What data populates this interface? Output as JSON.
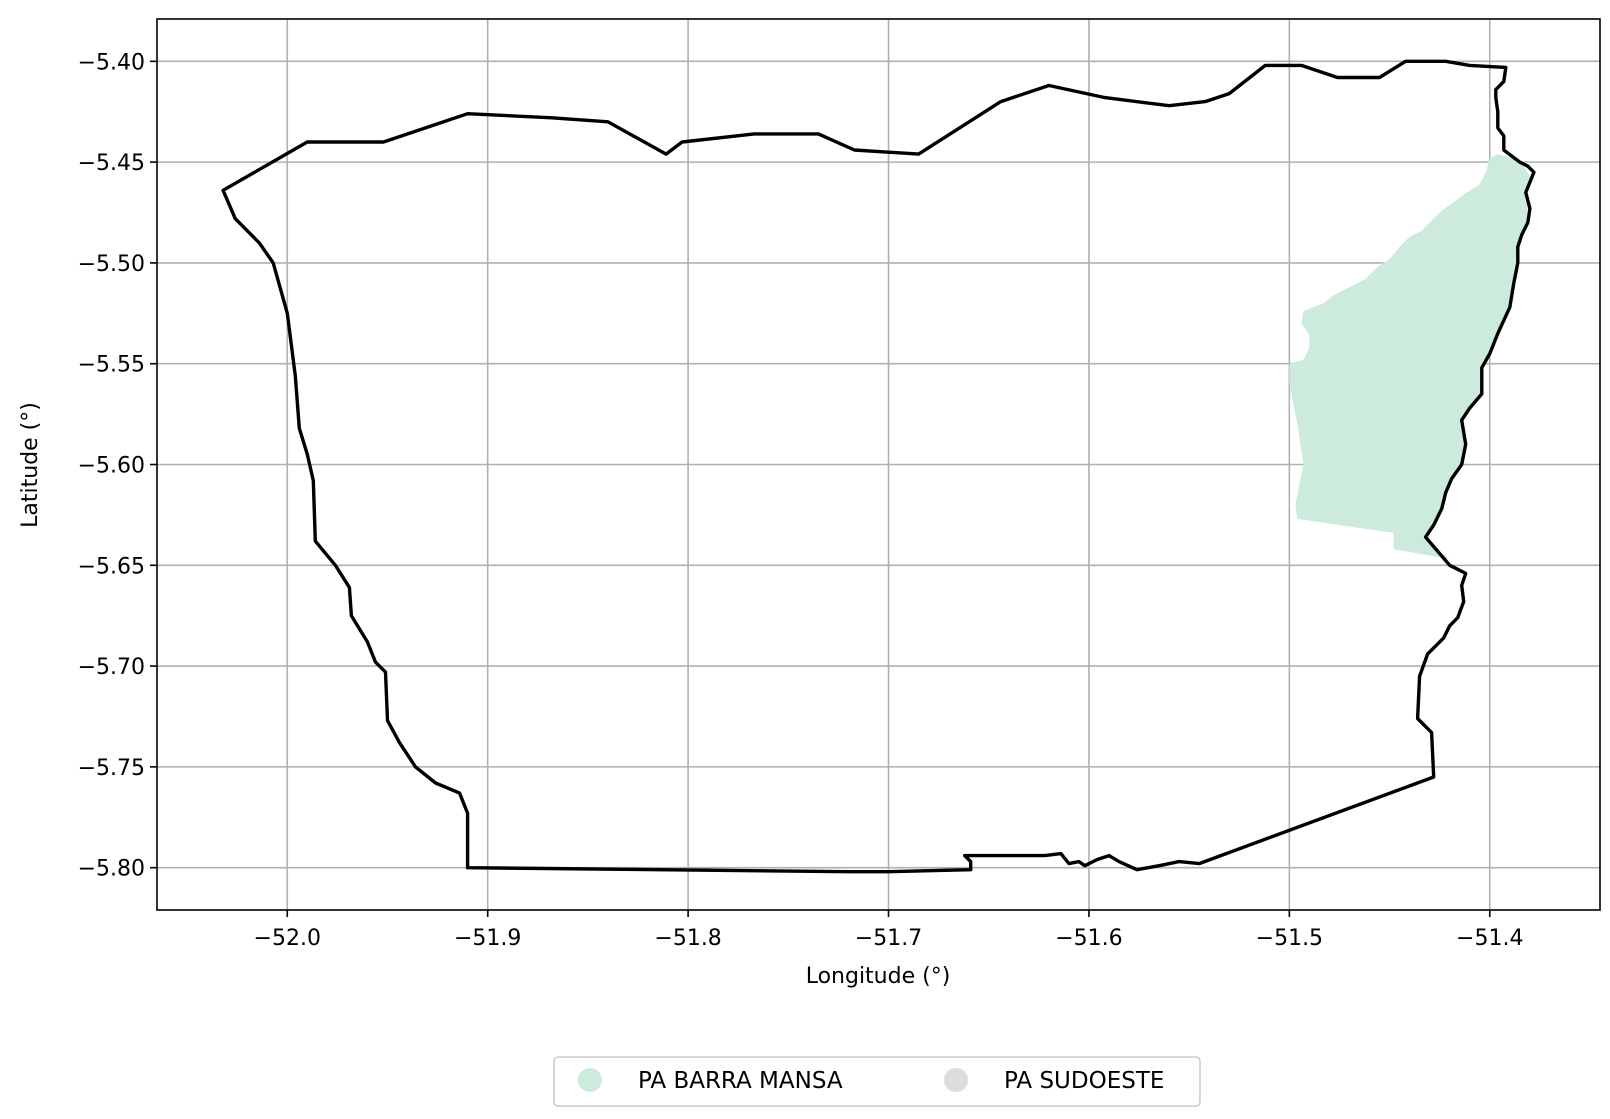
{
  "chart_data": {
    "type": "map",
    "xlabel": "Longitude (°)",
    "ylabel": "Latitude (°)",
    "xlim": [
      -52.065,
      -51.345
    ],
    "ylim": [
      -5.821,
      -5.379
    ],
    "xticks": [
      -52.0,
      -51.9,
      -51.8,
      -51.7,
      -51.6,
      -51.5,
      -51.4
    ],
    "yticks": [
      -5.4,
      -5.45,
      -5.5,
      -5.55,
      -5.6,
      -5.65,
      -5.7,
      -5.75,
      -5.8
    ],
    "xtick_labels": [
      "−52.0",
      "−51.9",
      "−51.8",
      "−51.7",
      "−51.6",
      "−51.5",
      "−51.4"
    ],
    "ytick_labels": [
      "−5.40",
      "−5.45",
      "−5.50",
      "−5.55",
      "−5.60",
      "−5.65",
      "−5.70",
      "−5.75",
      "−5.80"
    ],
    "grid": true,
    "boundary": {
      "color": "#000000",
      "coords": [
        [
          -52.032,
          -5.464
        ],
        [
          -51.99,
          -5.44
        ],
        [
          -51.952,
          -5.44
        ],
        [
          -51.91,
          -5.426
        ],
        [
          -51.868,
          -5.428
        ],
        [
          -51.84,
          -5.43
        ],
        [
          -51.811,
          -5.446
        ],
        [
          -51.803,
          -5.44
        ],
        [
          -51.767,
          -5.436
        ],
        [
          -51.735,
          -5.436
        ],
        [
          -51.717,
          -5.444
        ],
        [
          -51.685,
          -5.446
        ],
        [
          -51.644,
          -5.42
        ],
        [
          -51.62,
          -5.412
        ],
        [
          -51.592,
          -5.418
        ],
        [
          -51.56,
          -5.422
        ],
        [
          -51.542,
          -5.42
        ],
        [
          -51.53,
          -5.416
        ],
        [
          -51.512,
          -5.402
        ],
        [
          -51.494,
          -5.402
        ],
        [
          -51.476,
          -5.408
        ],
        [
          -51.455,
          -5.408
        ],
        [
          -51.442,
          -5.4
        ],
        [
          -51.422,
          -5.4
        ],
        [
          -51.41,
          -5.402
        ],
        [
          -51.392,
          -5.403
        ],
        [
          -51.393,
          -5.41
        ],
        [
          -51.397,
          -5.414
        ],
        [
          -51.397,
          -5.418
        ],
        [
          -51.396,
          -5.425
        ],
        [
          -51.396,
          -5.433
        ],
        [
          -51.393,
          -5.437
        ],
        [
          -51.393,
          -5.444
        ],
        [
          -51.389,
          -5.447
        ],
        [
          -51.385,
          -5.45
        ],
        [
          -51.381,
          -5.452
        ],
        [
          -51.378,
          -5.455
        ],
        [
          -51.382,
          -5.465
        ],
        [
          -51.38,
          -5.473
        ],
        [
          -51.381,
          -5.48
        ],
        [
          -51.384,
          -5.486
        ],
        [
          -51.386,
          -5.492
        ],
        [
          -51.386,
          -5.5
        ],
        [
          -51.388,
          -5.51
        ],
        [
          -51.39,
          -5.522
        ],
        [
          -51.396,
          -5.535
        ],
        [
          -51.4,
          -5.545
        ],
        [
          -51.404,
          -5.552
        ],
        [
          -51.404,
          -5.565
        ],
        [
          -51.41,
          -5.572
        ],
        [
          -51.414,
          -5.578
        ],
        [
          -51.412,
          -5.59
        ],
        [
          -51.414,
          -5.6
        ],
        [
          -51.419,
          -5.607
        ],
        [
          -51.422,
          -5.614
        ],
        [
          -51.424,
          -5.622
        ],
        [
          -51.428,
          -5.63
        ],
        [
          -51.432,
          -5.636
        ],
        [
          -51.42,
          -5.65
        ],
        [
          -51.412,
          -5.654
        ],
        [
          -51.414,
          -5.66
        ],
        [
          -51.413,
          -5.668
        ],
        [
          -51.416,
          -5.676
        ],
        [
          -51.42,
          -5.68
        ],
        [
          -51.423,
          -5.686
        ],
        [
          -51.431,
          -5.694
        ],
        [
          -51.435,
          -5.705
        ],
        [
          -51.436,
          -5.726
        ],
        [
          -51.429,
          -5.733
        ],
        [
          -51.428,
          -5.755
        ],
        [
          -51.545,
          -5.798
        ],
        [
          -51.555,
          -5.797
        ],
        [
          -51.565,
          -5.799
        ],
        [
          -51.576,
          -5.801
        ],
        [
          -51.585,
          -5.797
        ],
        [
          -51.59,
          -5.794
        ],
        [
          -51.596,
          -5.796
        ],
        [
          -51.602,
          -5.799
        ],
        [
          -51.605,
          -5.797
        ],
        [
          -51.61,
          -5.798
        ],
        [
          -51.614,
          -5.793
        ],
        [
          -51.622,
          -5.794
        ],
        [
          -51.632,
          -5.794
        ],
        [
          -51.662,
          -5.794
        ],
        [
          -51.659,
          -5.797
        ],
        [
          -51.659,
          -5.801
        ],
        [
          -51.7,
          -5.802
        ],
        [
          -51.72,
          -5.802
        ],
        [
          -51.91,
          -5.8
        ],
        [
          -51.91,
          -5.773
        ],
        [
          -51.914,
          -5.763
        ],
        [
          -51.926,
          -5.758
        ],
        [
          -51.936,
          -5.75
        ],
        [
          -51.944,
          -5.738
        ],
        [
          -51.95,
          -5.727
        ],
        [
          -51.951,
          -5.703
        ],
        [
          -51.956,
          -5.698
        ],
        [
          -51.96,
          -5.688
        ],
        [
          -51.968,
          -5.675
        ],
        [
          -51.969,
          -5.661
        ],
        [
          -51.976,
          -5.65
        ],
        [
          -51.986,
          -5.638
        ],
        [
          -51.987,
          -5.608
        ],
        [
          -51.99,
          -5.595
        ],
        [
          -51.994,
          -5.582
        ],
        [
          -51.996,
          -5.556
        ],
        [
          -52.0,
          -5.525
        ],
        [
          -52.007,
          -5.5
        ],
        [
          -52.014,
          -5.49
        ],
        [
          -52.026,
          -5.478
        ],
        [
          -52.032,
          -5.464
        ]
      ]
    },
    "features": [
      {
        "name": "PA BARRA MANSA",
        "color": "#cdebdc",
        "coords": [
          [
            -51.5,
            -5.55
          ],
          [
            -51.493,
            -5.548
          ],
          [
            -51.49,
            -5.542
          ],
          [
            -51.49,
            -5.536
          ],
          [
            -51.494,
            -5.53
          ],
          [
            -51.493,
            -5.524
          ],
          [
            -51.488,
            -5.522
          ],
          [
            -51.483,
            -5.52
          ],
          [
            -51.478,
            -5.516
          ],
          [
            -51.47,
            -5.512
          ],
          [
            -51.462,
            -5.508
          ],
          [
            -51.456,
            -5.502
          ],
          [
            -51.45,
            -5.498
          ],
          [
            -51.445,
            -5.492
          ],
          [
            -51.44,
            -5.487
          ],
          [
            -51.434,
            -5.484
          ],
          [
            -51.429,
            -5.479
          ],
          [
            -51.424,
            -5.474
          ],
          [
            -51.418,
            -5.47
          ],
          [
            -51.413,
            -5.466
          ],
          [
            -51.405,
            -5.461
          ],
          [
            -51.402,
            -5.455
          ],
          [
            -51.4,
            -5.448
          ],
          [
            -51.396,
            -5.446
          ],
          [
            -51.389,
            -5.448
          ],
          [
            -51.383,
            -5.452
          ],
          [
            -51.38,
            -5.457
          ],
          [
            -51.382,
            -5.465
          ],
          [
            -51.381,
            -5.472
          ],
          [
            -51.382,
            -5.48
          ],
          [
            -51.385,
            -5.487
          ],
          [
            -51.386,
            -5.495
          ],
          [
            -51.387,
            -5.505
          ],
          [
            -51.389,
            -5.515
          ],
          [
            -51.392,
            -5.525
          ],
          [
            -51.396,
            -5.535
          ],
          [
            -51.4,
            -5.545
          ],
          [
            -51.404,
            -5.552
          ],
          [
            -51.404,
            -5.565
          ],
          [
            -51.41,
            -5.572
          ],
          [
            -51.414,
            -5.578
          ],
          [
            -51.412,
            -5.59
          ],
          [
            -51.414,
            -5.6
          ],
          [
            -51.419,
            -5.607
          ],
          [
            -51.422,
            -5.614
          ],
          [
            -51.424,
            -5.622
          ],
          [
            -51.428,
            -5.63
          ],
          [
            -51.432,
            -5.636
          ],
          [
            -51.425,
            -5.643
          ],
          [
            -51.42,
            -5.647
          ],
          [
            -51.448,
            -5.642
          ],
          [
            -51.448,
            -5.634
          ],
          [
            -51.496,
            -5.627
          ],
          [
            -51.497,
            -5.62
          ],
          [
            -51.493,
            -5.6
          ],
          [
            -51.496,
            -5.58
          ],
          [
            -51.5,
            -5.56
          ],
          [
            -51.5,
            -5.55
          ]
        ]
      },
      {
        "name": "PA SUDOESTE",
        "color": "#dcdcdc",
        "coords": []
      }
    ],
    "legend": {
      "placement": "bottom-center",
      "entries": [
        {
          "label": "PA BARRA MANSA",
          "color": "#cdebdc"
        },
        {
          "label": "PA SUDOESTE",
          "color": "#dcdcdc"
        }
      ]
    }
  }
}
